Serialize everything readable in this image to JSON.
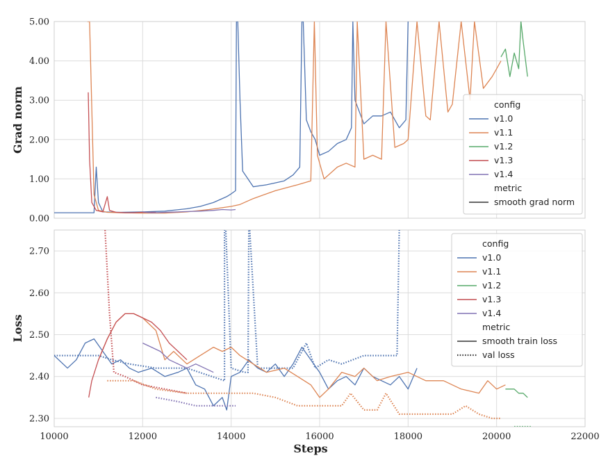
{
  "chart_data": {
    "x_label": "Steps",
    "x_ticks": [
      10000,
      12000,
      14000,
      16000,
      18000,
      20000,
      22000
    ],
    "x_tick_labels": [
      "10000",
      "12000",
      "14000",
      "16000",
      "18000",
      "20000",
      "22000"
    ],
    "xlim": [
      10000,
      22000
    ],
    "colors": {
      "v1.0": "#4c72b0",
      "v1.1": "#dd8452",
      "v1.2": "#55a868",
      "v1.3": "#c44e52",
      "v1.4": "#8172b3"
    },
    "panels": [
      {
        "type": "line",
        "ylabel": "Grad norm",
        "ylim": [
          0,
          5
        ],
        "y_ticks": [
          0,
          1,
          2,
          3,
          4,
          5
        ],
        "y_tick_labels": [
          "0.00",
          "1.00",
          "2.00",
          "3.00",
          "4.00",
          "5.00"
        ],
        "grid": true,
        "legend": {
          "position": "lower-right",
          "header1": "config",
          "items": [
            "v1.0",
            "v1.1",
            "v1.2",
            "v1.3",
            "v1.4"
          ],
          "header2": "metric",
          "styles": [
            {
              "label": "smooth grad norm",
              "dash": "solid"
            }
          ]
        },
        "series": [
          {
            "name": "v1.0",
            "style": "solid",
            "x": [
              10000,
              10500,
              10900,
              10950,
              11000,
              11100,
              11500,
              12000,
              12500,
              13000,
              13300,
              13600,
              13900,
              14000,
              14100,
              14120,
              14150,
              14200,
              14260,
              14500,
              14800,
              15000,
              15200,
              15400,
              15550,
              15600,
              15630,
              15700,
              15800,
              15900,
              16000,
              16200,
              16400,
              16600,
              16720,
              16750,
              16800,
              17000,
              17200,
              17400,
              17600,
              17800,
              17950,
              18000
            ],
            "y": [
              0.14,
              0.14,
              0.14,
              1.3,
              0.4,
              0.16,
              0.15,
              0.16,
              0.18,
              0.24,
              0.3,
              0.4,
              0.55,
              0.62,
              0.7,
              5.0,
              5.0,
              3.0,
              1.2,
              0.8,
              0.85,
              0.9,
              0.95,
              1.1,
              1.3,
              5.0,
              5.0,
              2.5,
              2.2,
              2.0,
              1.6,
              1.7,
              1.9,
              2.0,
              2.3,
              5.0,
              3.0,
              2.4,
              2.6,
              2.6,
              2.7,
              2.3,
              2.5,
              5.0
            ]
          },
          {
            "name": "v1.1",
            "style": "solid",
            "x": [
              10750,
              10800,
              10900,
              11000,
              11200,
              11500,
              12000,
              12500,
              13000,
              13500,
              14000,
              14200,
              14500,
              15000,
              15500,
              15800,
              15880,
              15950,
              16100,
              16400,
              16600,
              16800,
              16850,
              17000,
              17200,
              17400,
              17500,
              17700,
              17900,
              18000,
              18200,
              18400,
              18500,
              18700,
              18900,
              19000,
              19200,
              19400,
              19500,
              19700,
              19900,
              20000,
              20100
            ],
            "y": [
              5.0,
              5.0,
              0.6,
              0.2,
              0.15,
              0.14,
              0.13,
              0.13,
              0.16,
              0.22,
              0.3,
              0.35,
              0.5,
              0.7,
              0.85,
              0.95,
              5.0,
              1.6,
              1.0,
              1.3,
              1.4,
              1.3,
              5.0,
              1.5,
              1.6,
              1.5,
              5.0,
              1.8,
              1.9,
              2.0,
              5.0,
              2.6,
              2.5,
              5.0,
              2.7,
              2.9,
              5.0,
              3.0,
              5.0,
              3.3,
              3.6,
              3.8,
              4.0
            ]
          },
          {
            "name": "v1.2",
            "style": "solid",
            "x": [
              20100,
              20200,
              20300,
              20400,
              20500,
              20550,
              20600,
              20700
            ],
            "y": [
              4.1,
              4.3,
              3.6,
              4.2,
              3.8,
              5.0,
              4.5,
              3.6
            ]
          },
          {
            "name": "v1.3",
            "style": "solid",
            "x": [
              10770,
              10800,
              10850,
              10950,
              11100,
              11200,
              11250,
              11400,
              11600,
              11800,
              12000,
              12300
            ],
            "y": [
              3.2,
              1.5,
              0.4,
              0.2,
              0.16,
              0.55,
              0.2,
              0.15,
              0.14,
              0.14,
              0.15,
              0.15
            ]
          },
          {
            "name": "v1.4",
            "style": "solid",
            "x": [
              12000,
              12200,
              12500,
              12800,
              13000,
              13300,
              13600,
              13800,
              14000,
              14100
            ],
            "y": [
              0.16,
              0.14,
              0.15,
              0.16,
              0.17,
              0.18,
              0.2,
              0.22,
              0.21,
              0.22
            ]
          }
        ]
      },
      {
        "type": "line",
        "ylabel": "Loss",
        "ylim": [
          2.28,
          2.75
        ],
        "y_ticks": [
          2.3,
          2.4,
          2.5,
          2.6,
          2.7
        ],
        "y_tick_labels": [
          "2.30",
          "2.40",
          "2.50",
          "2.60",
          "2.70"
        ],
        "grid": true,
        "legend": {
          "position": "upper-right",
          "header1": "config",
          "items": [
            "v1.0",
            "v1.1",
            "v1.2",
            "v1.3",
            "v1.4"
          ],
          "header2": "metric",
          "styles": [
            {
              "label": "smooth train loss",
              "dash": "solid"
            },
            {
              "label": "val loss",
              "dash": "dotted"
            }
          ]
        },
        "series": [
          {
            "name": "v1.0",
            "style": "solid",
            "x": [
              10000,
              10300,
              10500,
              10700,
              10900,
              11100,
              11300,
              11500,
              11700,
              11900,
              12200,
              12500,
              12800,
              13000,
              13200,
              13400,
              13600,
              13800,
              13900,
              14000,
              14200,
              14400,
              14600,
              14800,
              15000,
              15200,
              15400,
              15600,
              15800,
              16000,
              16200,
              16400,
              16600,
              16800,
              17000,
              17200,
              17400,
              17600,
              17800,
              18000,
              18200
            ],
            "y": [
              2.45,
              2.42,
              2.44,
              2.48,
              2.49,
              2.46,
              2.43,
              2.44,
              2.42,
              2.41,
              2.42,
              2.4,
              2.41,
              2.42,
              2.38,
              2.37,
              2.33,
              2.35,
              2.32,
              2.4,
              2.41,
              2.44,
              2.42,
              2.41,
              2.43,
              2.4,
              2.43,
              2.47,
              2.44,
              2.41,
              2.37,
              2.39,
              2.4,
              2.38,
              2.42,
              2.4,
              2.39,
              2.38,
              2.4,
              2.37,
              2.42
            ]
          },
          {
            "name": "v1.0",
            "style": "dotted",
            "x": [
              10000,
              11000,
              11300,
              11700,
              12300,
              13000,
              13850,
              13850,
              13880,
              14000,
              14300,
              14380,
              14400,
              14420,
              14600,
              15000,
              15400,
              15700,
              15900,
              16200,
              16500,
              17000,
              17500,
              17750,
              17800
            ],
            "y": [
              2.45,
              2.45,
              2.44,
              2.43,
              2.42,
              2.42,
              2.39,
              2.75,
              2.75,
              2.42,
              2.41,
              2.41,
              2.75,
              2.75,
              2.42,
              2.42,
              2.42,
              2.48,
              2.42,
              2.44,
              2.43,
              2.45,
              2.45,
              2.45,
              2.75
            ]
          },
          {
            "name": "v1.1",
            "style": "solid",
            "x": [
              11000,
              11200,
              11400,
              11600,
              11800,
              12000,
              12300,
              12500,
              12700,
              13000,
              13300,
              13600,
              13800,
              14000,
              14200,
              14500,
              14800,
              15200,
              15500,
              15800,
              16000,
              16200,
              16500,
              16800,
              17000,
              17300,
              17600,
              18000,
              18400,
              18800,
              19200,
              19600,
              19800,
              20000,
              20200
            ],
            "y": [
              2.44,
              2.49,
              2.53,
              2.55,
              2.55,
              2.54,
              2.51,
              2.44,
              2.46,
              2.43,
              2.45,
              2.47,
              2.46,
              2.47,
              2.45,
              2.43,
              2.41,
              2.42,
              2.4,
              2.38,
              2.35,
              2.37,
              2.41,
              2.4,
              2.42,
              2.39,
              2.4,
              2.41,
              2.39,
              2.39,
              2.37,
              2.36,
              2.39,
              2.37,
              2.38
            ]
          },
          {
            "name": "v1.1",
            "style": "dotted",
            "x": [
              11200,
              11800,
              12300,
              13000,
              13700,
              14500,
              15000,
              15500,
              16500,
              16700,
              17000,
              17300,
              17500,
              17800,
              18000,
              18500,
              19000,
              19300,
              19600,
              19900,
              20100
            ],
            "y": [
              2.39,
              2.39,
              2.37,
              2.36,
              2.36,
              2.36,
              2.35,
              2.33,
              2.33,
              2.36,
              2.32,
              2.32,
              2.36,
              2.31,
              2.31,
              2.31,
              2.31,
              2.33,
              2.31,
              2.3,
              2.3
            ]
          },
          {
            "name": "v1.2",
            "style": "solid",
            "x": [
              20200,
              20400,
              20500,
              20600,
              20700
            ],
            "y": [
              2.37,
              2.37,
              2.36,
              2.36,
              2.35
            ]
          },
          {
            "name": "v1.2",
            "style": "dotted",
            "x": [
              20400,
              20800
            ],
            "y": [
              2.28,
              2.28
            ]
          },
          {
            "name": "v1.3",
            "style": "solid",
            "x": [
              10780,
              10850,
              11000,
              11200,
              11400,
              11600,
              11800,
              12000,
              12200,
              12400,
              12600,
              12800,
              13000
            ],
            "y": [
              2.35,
              2.39,
              2.44,
              2.49,
              2.53,
              2.55,
              2.55,
              2.54,
              2.53,
              2.51,
              2.48,
              2.46,
              2.44
            ]
          },
          {
            "name": "v1.3",
            "style": "dotted",
            "x": [
              11150,
              11250,
              11350,
              11600,
              12000,
              12500,
              13000
            ],
            "y": [
              2.75,
              2.55,
              2.41,
              2.4,
              2.38,
              2.37,
              2.36
            ]
          },
          {
            "name": "v1.4",
            "style": "solid",
            "x": [
              12000,
              12200,
              12400,
              12600,
              12800,
              13000,
              13200,
              13400,
              13600
            ],
            "y": [
              2.48,
              2.47,
              2.46,
              2.44,
              2.43,
              2.42,
              2.43,
              2.42,
              2.41
            ]
          },
          {
            "name": "v1.4",
            "style": "dotted",
            "x": [
              12300,
              12800,
              13200,
              13600,
              14000,
              14100
            ],
            "y": [
              2.35,
              2.34,
              2.33,
              2.33,
              2.33,
              2.33
            ]
          }
        ]
      }
    ]
  }
}
